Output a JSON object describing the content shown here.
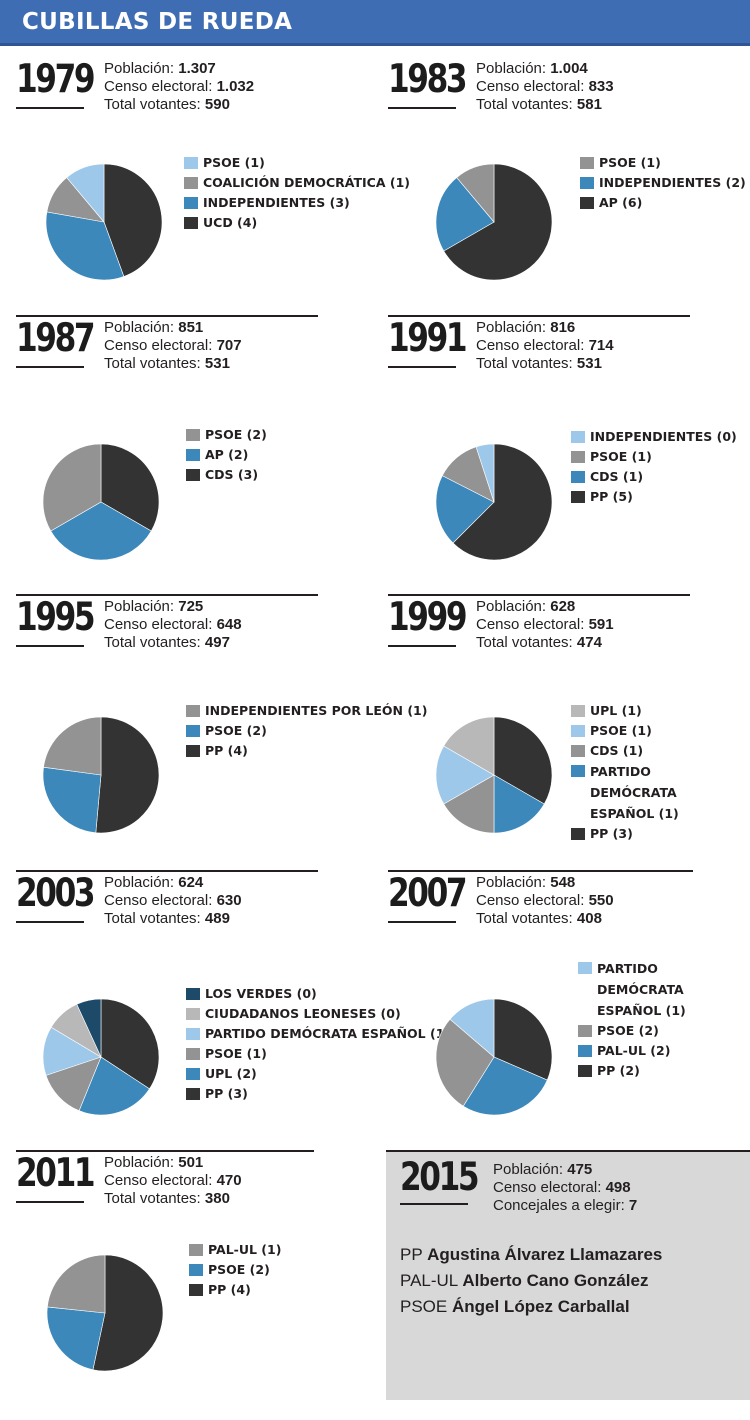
{
  "title": "CUBILLAS DE RUEDA",
  "colors": {
    "header": "#3f6db3",
    "box_2015": "#d8d8d8"
  },
  "labels": {
    "poblacion": "Población:",
    "censo": "Censo electoral:",
    "votantes": "Total votantes:",
    "concejales": "Concejales a elegir:"
  },
  "chart_data": [
    {
      "type": "pie",
      "year": "1979",
      "poblacion": "1.307",
      "censo": "1.032",
      "votantes": "590",
      "slices": [
        {
          "label": "PSOE (1)",
          "value": 1,
          "color": "#9ec8ea"
        },
        {
          "label": "COALICIÓN DEMOCRÁTICA (1)",
          "value": 1,
          "color": "#939393"
        },
        {
          "label": "INDEPENDIENTES (3)",
          "value": 3,
          "color": "#3c88bb"
        },
        {
          "label": "UCD (4)",
          "value": 4,
          "color": "#333333"
        }
      ]
    },
    {
      "type": "pie",
      "year": "1983",
      "poblacion": "1.004",
      "censo": "833",
      "votantes": "581",
      "slices": [
        {
          "label": "PSOE (1)",
          "value": 1,
          "color": "#939393"
        },
        {
          "label": "INDEPENDIENTES (2)",
          "value": 2,
          "color": "#3c88bb"
        },
        {
          "label": "AP (6)",
          "value": 6,
          "color": "#333333"
        }
      ]
    },
    {
      "type": "pie",
      "year": "1987",
      "poblacion": "851",
      "censo": "707",
      "votantes": "531",
      "slices": [
        {
          "label": "PSOE (2)",
          "value": 2,
          "color": "#939393"
        },
        {
          "label": "AP (2)",
          "value": 2,
          "color": "#3c88bb"
        },
        {
          "label": "CDS (3)",
          "value": 2,
          "color": "#333333"
        }
      ]
    },
    {
      "type": "pie",
      "year": "1991",
      "poblacion": "816",
      "censo": "714",
      "votantes": "531",
      "slices": [
        {
          "label": "INDEPENDIENTES (0)",
          "value": 0.4,
          "color": "#9ec8ea"
        },
        {
          "label": "PSOE (1)",
          "value": 1,
          "color": "#939393"
        },
        {
          "label": "CDS (1)",
          "value": 1.6,
          "color": "#3c88bb"
        },
        {
          "label": "PP (5)",
          "value": 5,
          "color": "#333333"
        }
      ]
    },
    {
      "type": "pie",
      "year": "1995",
      "poblacion": "725",
      "censo": "648",
      "votantes": "497",
      "slices": [
        {
          "label": "INDEPENDIENTES POR LEÓN (1)",
          "value": 1.6,
          "color": "#939393"
        },
        {
          "label": "PSOE (2)",
          "value": 1.8,
          "color": "#3c88bb"
        },
        {
          "label": "PP (4)",
          "value": 3.6,
          "color": "#333333"
        }
      ]
    },
    {
      "type": "pie",
      "year": "1999",
      "poblacion": "628",
      "censo": "591",
      "votantes": "474",
      "slices": [
        {
          "label": "UPL (1)",
          "value": 1,
          "color": "#b8b8b8"
        },
        {
          "label": "PSOE (1)",
          "value": 1,
          "color": "#9ec8ea"
        },
        {
          "label": "CDS (1)",
          "value": 1,
          "color": "#939393"
        },
        {
          "label": "PARTIDO DEMÓCRATA ESPAÑOL (1)",
          "value": 1,
          "color": "#3c88bb"
        },
        {
          "label": "PP (3)",
          "value": 2,
          "color": "#333333"
        }
      ]
    },
    {
      "type": "pie",
      "year": "2003",
      "poblacion": "624",
      "censo": "630",
      "votantes": "489",
      "slices": [
        {
          "label": "LOS VERDES (0)",
          "value": 0.5,
          "color": "#1e4a6a"
        },
        {
          "label": "CIUDADANOS LEONESES (0)",
          "value": 0.7,
          "color": "#b8b8b8"
        },
        {
          "label": "PARTIDO DEMÓCRATA ESPAÑOL (1)",
          "value": 1,
          "color": "#9ec8ea"
        },
        {
          "label": "PSOE (1)",
          "value": 1,
          "color": "#939393"
        },
        {
          "label": "UPL (2)",
          "value": 1.6,
          "color": "#3c88bb"
        },
        {
          "label": "PP (3)",
          "value": 2.5,
          "color": "#333333"
        }
      ]
    },
    {
      "type": "pie",
      "year": "2007",
      "poblacion": "548",
      "censo": "550",
      "votantes": "408",
      "slices": [
        {
          "label": "PARTIDO DEMÓCRATA ESPAÑOL (1)",
          "value": 1,
          "color": "#9ec8ea"
        },
        {
          "label": "PSOE (2)",
          "value": 2,
          "color": "#939393"
        },
        {
          "label": "PAL-UL (2)",
          "value": 2,
          "color": "#3c88bb"
        },
        {
          "label": "PP (2)",
          "value": 2.3,
          "color": "#333333"
        }
      ]
    },
    {
      "type": "pie",
      "year": "2011",
      "poblacion": "501",
      "censo": "470",
      "votantes": "380",
      "slices": [
        {
          "label": "PAL-UL (1)",
          "value": 1.4,
          "color": "#939393"
        },
        {
          "label": "PSOE (2)",
          "value": 1.4,
          "color": "#3c88bb"
        },
        {
          "label": "PP (4)",
          "value": 3.2,
          "color": "#333333"
        }
      ]
    }
  ],
  "y2015": {
    "year": "2015",
    "poblacion": "475",
    "censo": "498",
    "concejales": "7",
    "candidates": [
      {
        "party": "PP",
        "name": "Agustina Álvarez Llamazares"
      },
      {
        "party": "PAL-UL",
        "name": "Alberto Cano González"
      },
      {
        "party": "PSOE",
        "name": "Ángel López Carballal"
      }
    ]
  }
}
